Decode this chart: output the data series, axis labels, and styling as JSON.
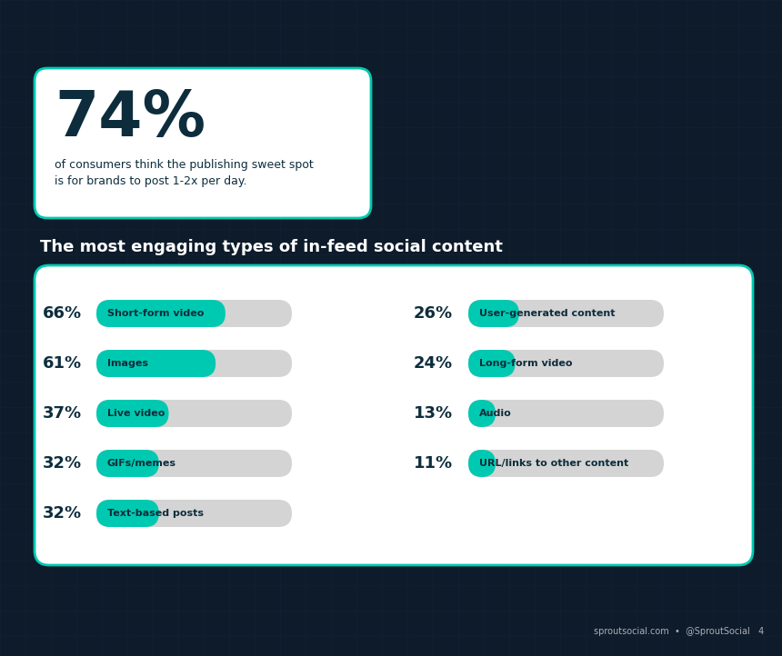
{
  "bg_color": "#0d1b2a",
  "grid_color": "#0e2538",
  "card_color": "#ffffff",
  "teal_color": "#00c9b1",
  "bar_bg_color": "#d4d4d4",
  "text_dark": "#0d2d3d",
  "text_white": "#ffffff",
  "text_gray": "#aab0b8",
  "title_74": "74%",
  "subtitle_74_line1": "of consumers think the publishing sweet spot",
  "subtitle_74_line2": "is for brands to post 1-2x per day.",
  "section_title": "The most engaging types of in-feed social content",
  "footer": "sproutsocial.com  •  @SproutSocial   4",
  "left_bars": [
    {
      "pct": 66,
      "label": "Short-form video"
    },
    {
      "pct": 61,
      "label": "Images"
    },
    {
      "pct": 37,
      "label": "Live video"
    },
    {
      "pct": 32,
      "label": "GIFs/memes"
    },
    {
      "pct": 32,
      "label": "Text-based posts"
    }
  ],
  "right_bars": [
    {
      "pct": 26,
      "label": "User-generated content"
    },
    {
      "pct": 24,
      "label": "Long-form video"
    },
    {
      "pct": 13,
      "label": "Audio"
    },
    {
      "pct": 11,
      "label": "URL/links to other content"
    }
  ],
  "max_pct": 100,
  "grid_step": 28,
  "fig_w": 8.6,
  "fig_h": 7.22,
  "dpi": 100
}
